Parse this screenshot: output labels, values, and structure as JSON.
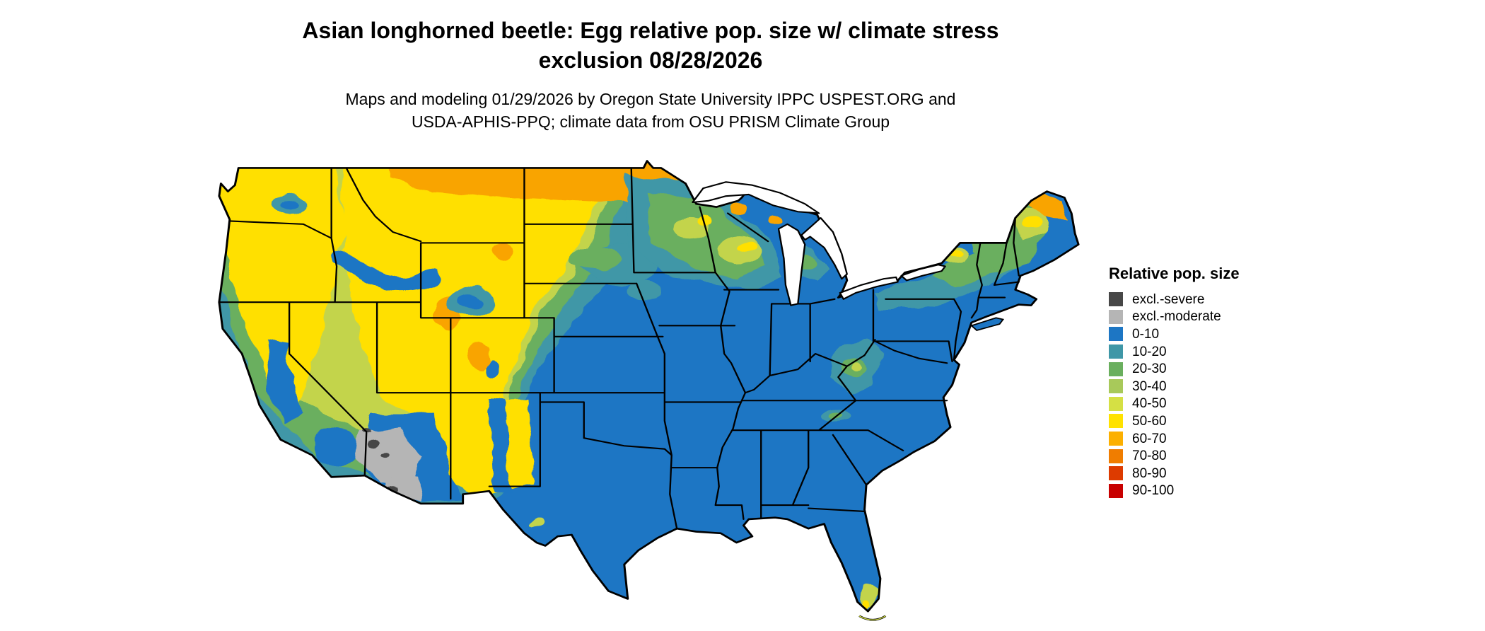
{
  "header": {
    "title_line1": "Asian longhorned beetle: Egg relative pop. size w/ climate stress",
    "title_line2": "exclusion 08/28/2026",
    "subtitle_line1": "Maps and modeling 01/29/2026 by Oregon State University IPPC USPEST.ORG and",
    "subtitle_line2": "USDA-APHIS-PPQ; climate data from OSU PRISM Climate Group"
  },
  "legend": {
    "title": "Relative pop. size",
    "items": [
      {
        "label": "excl.-severe",
        "color": "#474747"
      },
      {
        "label": "excl.-moderate",
        "color": "#b5b5b5"
      },
      {
        "label": "0-10",
        "color": "#1d76c4"
      },
      {
        "label": "10-20",
        "color": "#3f97a7"
      },
      {
        "label": "20-30",
        "color": "#6aaf5e"
      },
      {
        "label": "30-40",
        "color": "#a8c95a"
      },
      {
        "label": "40-50",
        "color": "#d5e044"
      },
      {
        "label": "50-60",
        "color": "#ffe200"
      },
      {
        "label": "60-70",
        "color": "#fcb000"
      },
      {
        "label": "70-80",
        "color": "#f07d00"
      },
      {
        "label": "80-90",
        "color": "#dd3b00"
      },
      {
        "label": "90-100",
        "color": "#c80000"
      }
    ]
  },
  "map": {
    "region": "Continental United States",
    "base_color": "#1d76c4",
    "background": "#ffffff"
  }
}
